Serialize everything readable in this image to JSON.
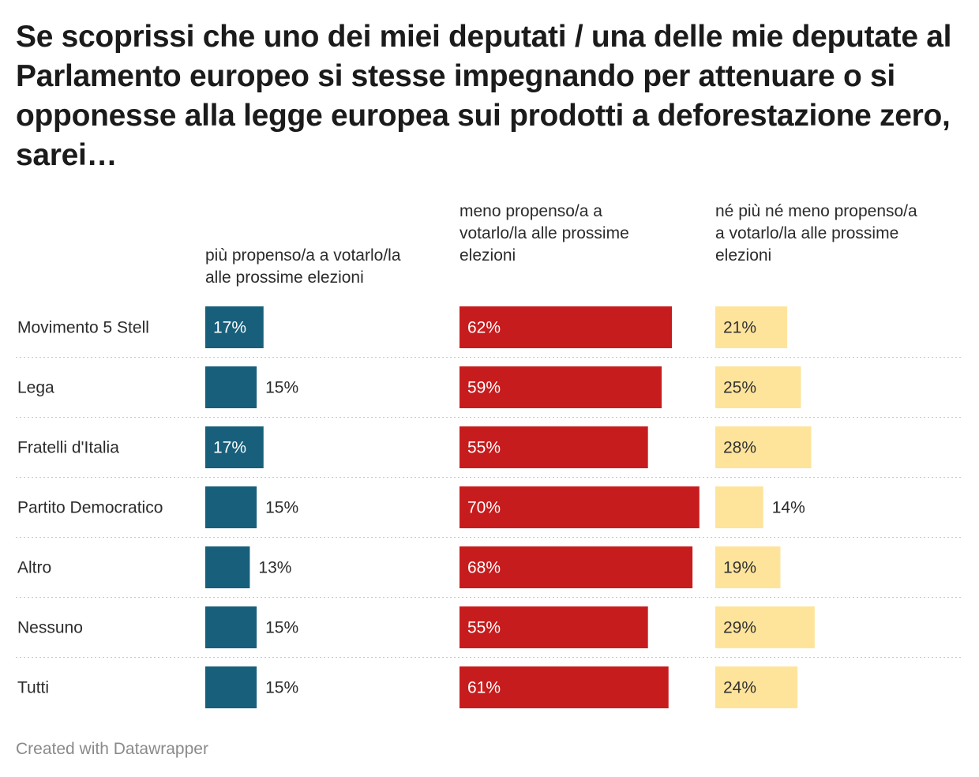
{
  "title": "Se scoprissi che uno dei miei deputati / una delle mie deputate al Parlamento europeo si stesse impegnando per attenuare o si opponesse alla legge europea sui prodotti a deforestazione zero, sarei…",
  "footer": "Created with Datawrapper",
  "chart_data": {
    "type": "bar",
    "orientation": "horizontal",
    "layout": "split-bars",
    "unit": "%",
    "categories": [
      "Movimento 5 Stell",
      "Lega",
      "Fratelli d'Italia",
      "Partito Democratico",
      "Altro",
      "Nessuno",
      "Tutti"
    ],
    "series": [
      {
        "name": "più propenso/a a votarlo/la alle prossime elezioni",
        "header_lines": [
          "più propenso/a a votarlo/la",
          "alle prossime elezioni"
        ],
        "values": [
          17,
          15,
          17,
          15,
          13,
          15,
          15
        ],
        "color": "#175f7b",
        "label_color_inside": "#ffffff"
      },
      {
        "name": "meno propenso/a a votarlo/la alle prossime elezioni",
        "header_lines": [
          "meno propenso/a a",
          "votarlo/la alle prossime",
          "elezioni"
        ],
        "values": [
          62,
          59,
          55,
          70,
          68,
          55,
          61
        ],
        "color": "#c71c1e",
        "label_color_inside": "#ffffff"
      },
      {
        "name": "né più né meno propenso/a a votarlo/la alle prossime elezioni",
        "header_lines": [
          "né più né meno propenso/a",
          "a votarlo/la alle prossime",
          "elezioni"
        ],
        "values": [
          21,
          25,
          28,
          14,
          19,
          29,
          24
        ],
        "color": "#fee49b",
        "label_color_inside": "#333333"
      }
    ],
    "xlim": [
      0,
      70
    ],
    "grid": false,
    "row_separators": "dotted"
  }
}
